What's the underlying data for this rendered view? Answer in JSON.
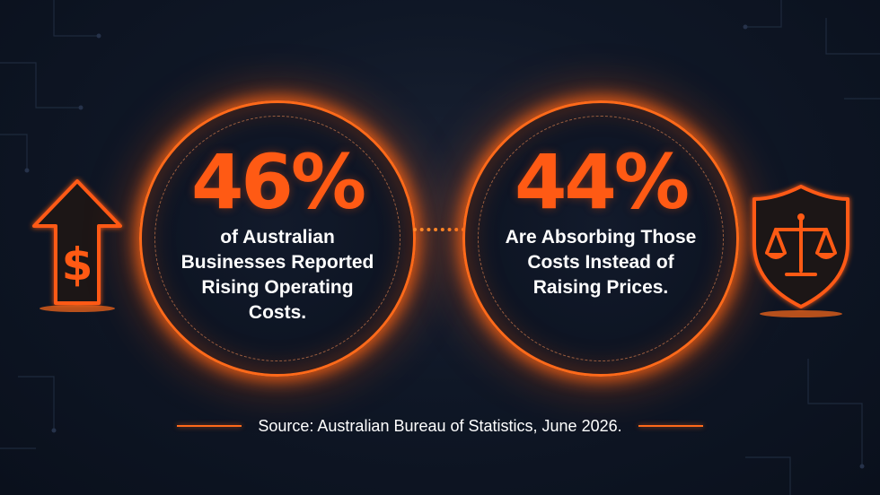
{
  "stats": [
    {
      "percent": "46%",
      "description": "of Australian Businesses Reported Rising Operating Costs."
    },
    {
      "percent": "44%",
      "description": "Are Absorbing Those Costs Instead of Raising Prices."
    }
  ],
  "icons": {
    "left": "dollar-arrow-up-icon",
    "right": "shield-scales-icon"
  },
  "source": "Source: Australian Bureau of Statistics, June 2026.",
  "colors": {
    "accent": "#ff5a14",
    "background": "#0b1220",
    "text": "#ffffff"
  }
}
